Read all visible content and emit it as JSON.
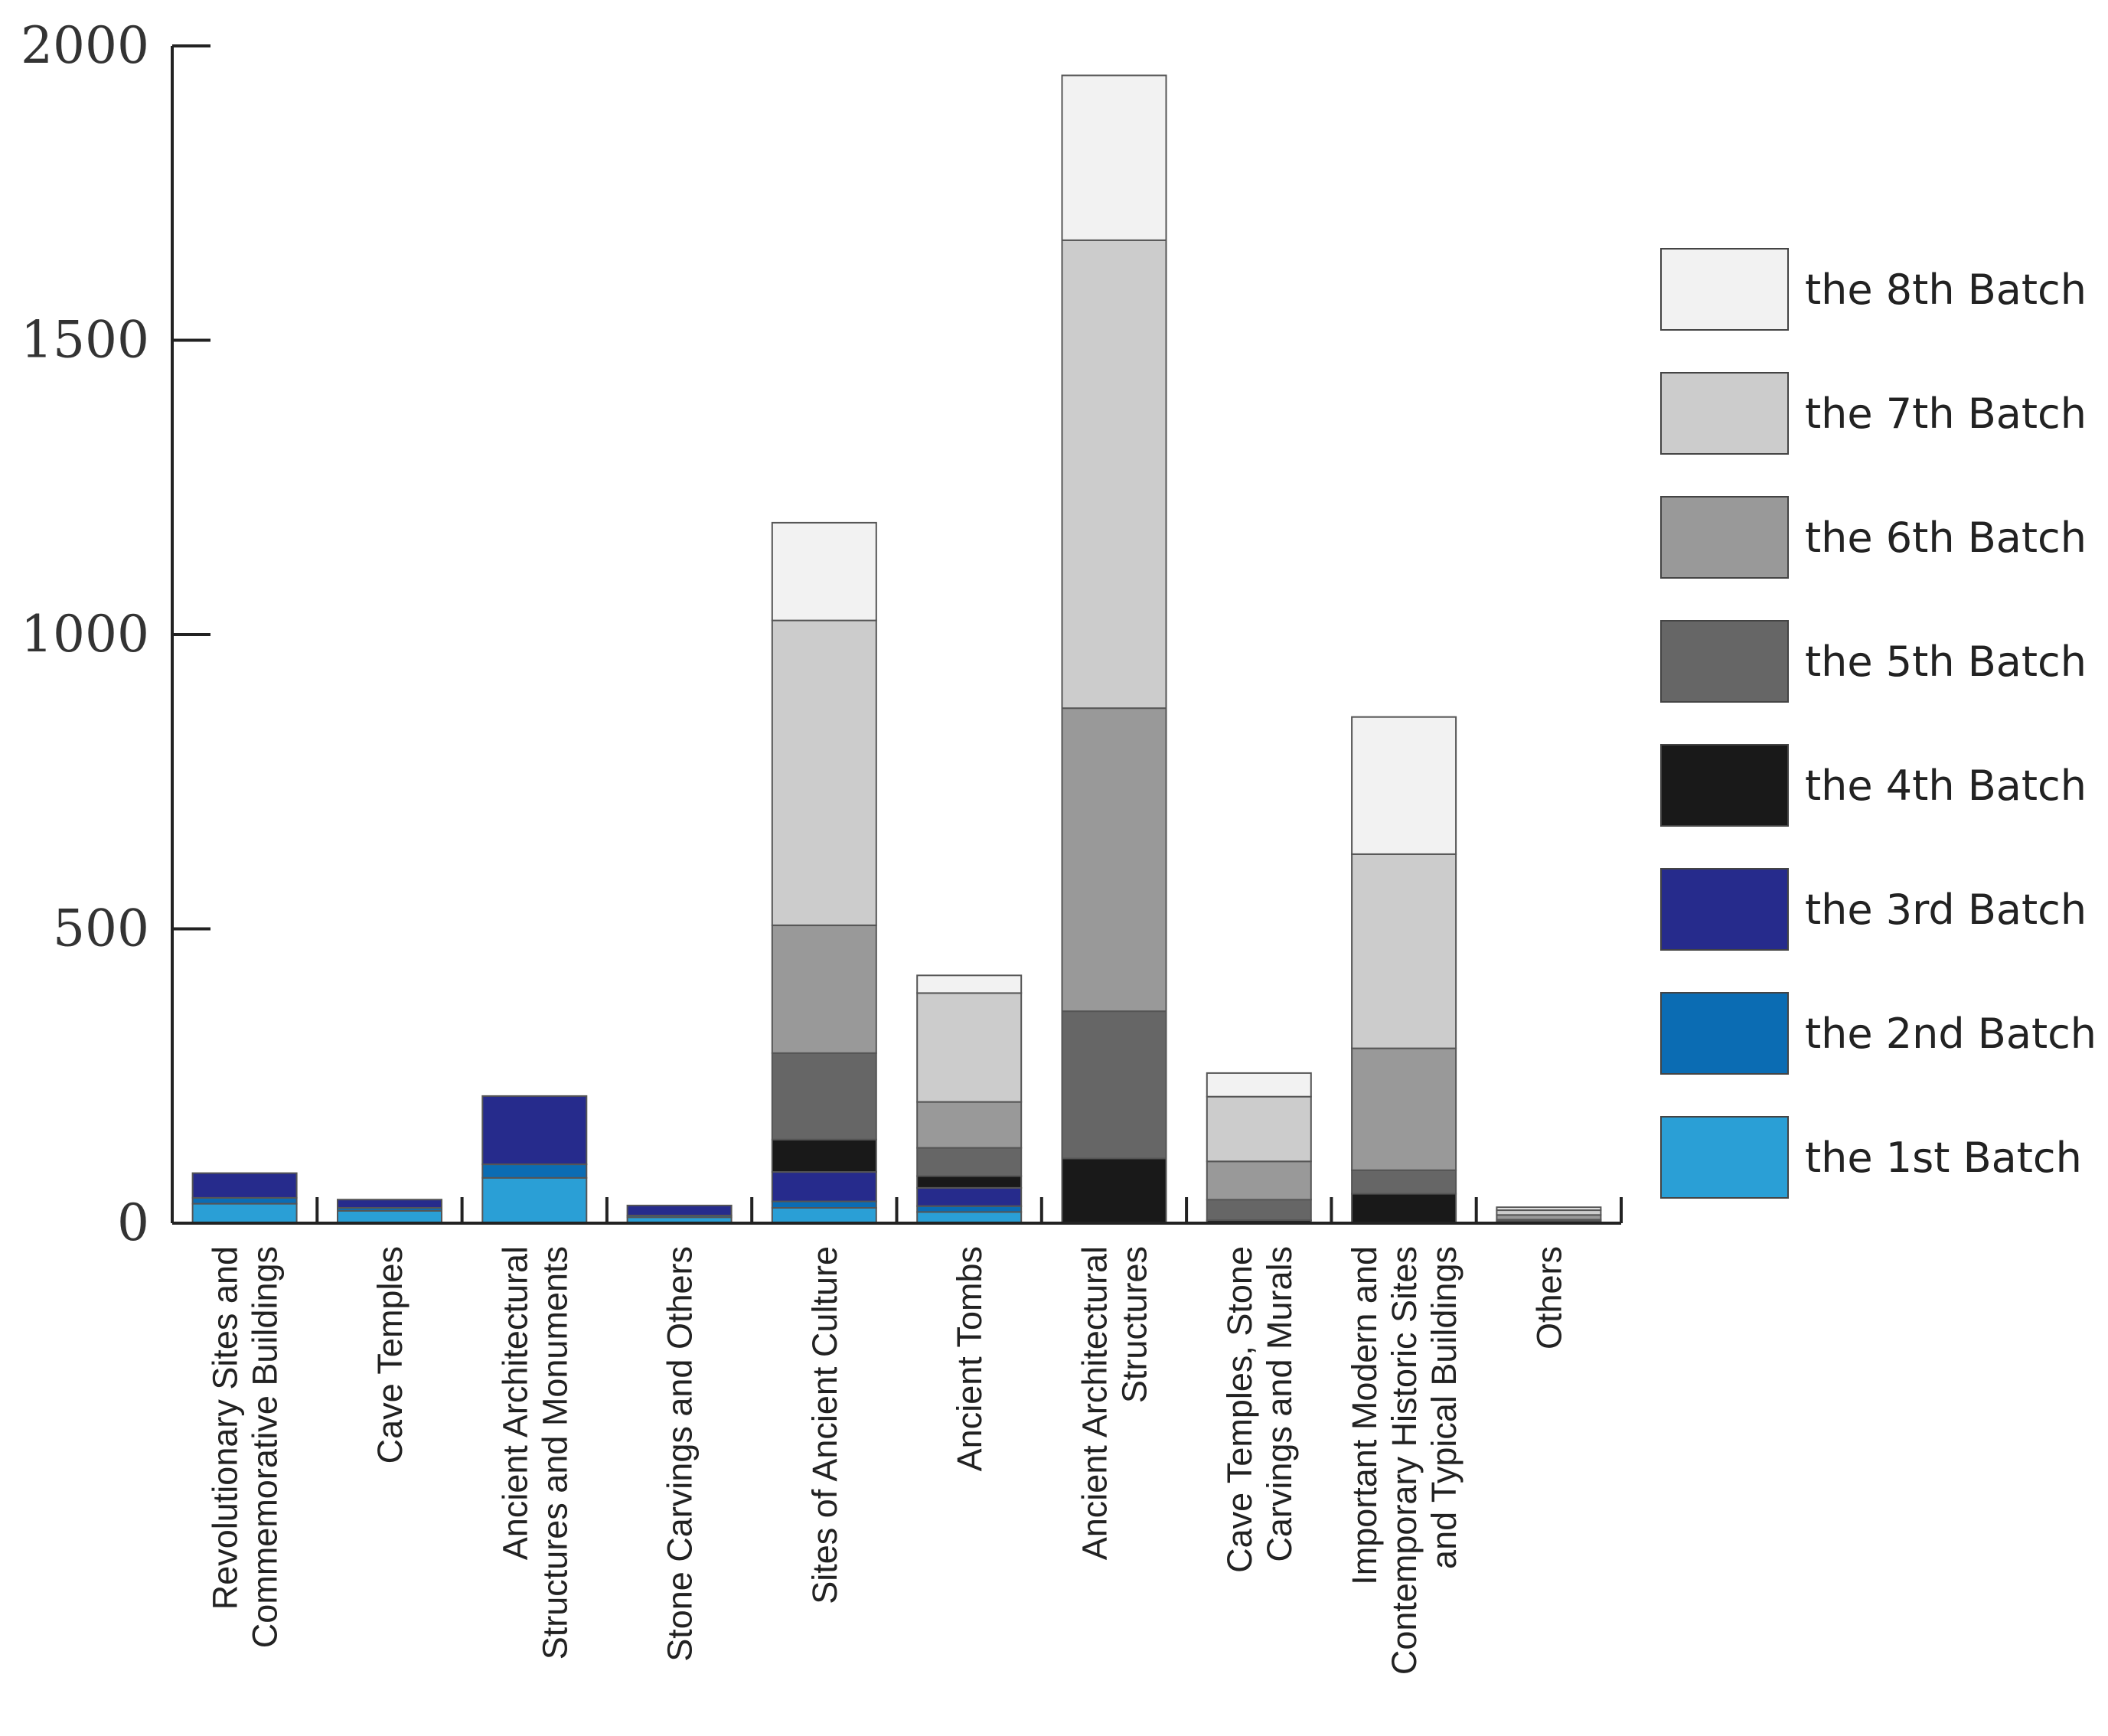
{
  "chart_data": {
    "type": "bar",
    "stacked": true,
    "title": "",
    "xlabel": "",
    "ylabel": "",
    "ylim": [
      0,
      2000
    ],
    "yticks": [
      0,
      500,
      1000,
      1500,
      2000
    ],
    "legend_position": "right",
    "categories": [
      [
        "Revolutionary Sites and",
        "Commemorative Buildings"
      ],
      [
        "Cave Temples"
      ],
      [
        "Ancient Architectural",
        "Structures and Monuments"
      ],
      [
        "Stone Carvings and Others"
      ],
      [
        "Sites of Ancient Culture"
      ],
      [
        "Ancient Tombs"
      ],
      [
        "Ancient Architectural",
        "Structures"
      ],
      [
        "Cave Temples, Stone",
        "Carvings  and Murals"
      ],
      [
        "Important Modern and",
        "Contemporary Historic Sites",
        "and Typical Buildings"
      ],
      [
        "Others"
      ]
    ],
    "series": [
      {
        "name": "the 1st Batch",
        "color": "#2a9fd6",
        "values": [
          33,
          21,
          77,
          10,
          26,
          19,
          0,
          0,
          0,
          0
        ]
      },
      {
        "name": "the 2nd Batch",
        "color": "#0b6cb3",
        "values": [
          10,
          5,
          23,
          3,
          11,
          10,
          0,
          0,
          0,
          0
        ]
      },
      {
        "name": "the 3rd Batch",
        "color": "#262b8c",
        "values": [
          42,
          14,
          116,
          17,
          50,
          31,
          0,
          0,
          0,
          0
        ]
      },
      {
        "name": "the 4th Batch",
        "color": "#191919",
        "values": [
          0,
          0,
          0,
          0,
          55,
          20,
          110,
          5,
          50,
          3
        ]
      },
      {
        "name": "the 5th Batch",
        "color": "#666666",
        "values": [
          0,
          0,
          0,
          0,
          147,
          48,
          250,
          35,
          40,
          3
        ]
      },
      {
        "name": "the 6th Batch",
        "color": "#999999",
        "values": [
          0,
          0,
          0,
          0,
          217,
          78,
          515,
          65,
          207,
          8
        ]
      },
      {
        "name": "the 7th Batch",
        "color": "#cccccc",
        "values": [
          0,
          0,
          0,
          0,
          518,
          185,
          795,
          110,
          330,
          8
        ]
      },
      {
        "name": "the 8th Batch",
        "color": "#f2f2f2",
        "values": [
          0,
          0,
          0,
          0,
          166,
          30,
          280,
          40,
          233,
          5
        ]
      }
    ]
  }
}
